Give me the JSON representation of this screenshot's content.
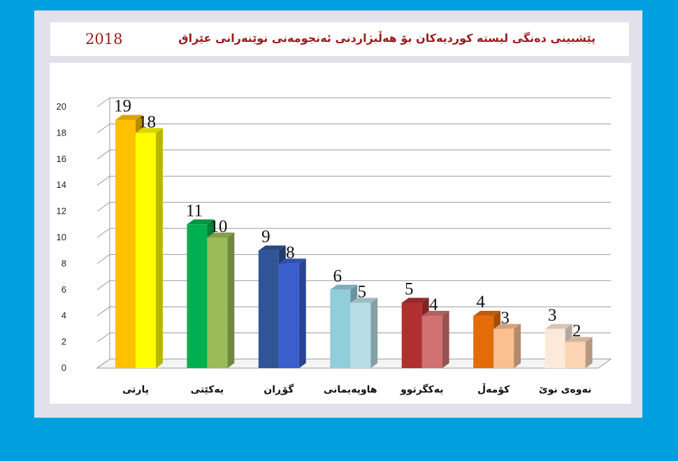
{
  "title": {
    "text": "پێشبینی دەنگی لیستە کوردیەکان بۆ هەڵبژاردنی ئەنجومەنی نوێنەرانی عێراق",
    "year": "2018",
    "color": "#9b1b1b"
  },
  "colors": {
    "background": "#00a0e0",
    "frame": "#e2e0ea",
    "panel": "#ffffff"
  },
  "chart_data": {
    "type": "bar",
    "variant": "3d-grouped",
    "ylim": [
      0,
      20
    ],
    "yticks": [
      0,
      2,
      4,
      6,
      8,
      10,
      12,
      14,
      16,
      18,
      20
    ],
    "grid": true,
    "categories": [
      "پارتی",
      "یەکێتی",
      "گۆڕان",
      "هاوپەیمانی",
      "یەکگرتوو",
      "کۆمەڵ",
      "نەوەی نوێ"
    ],
    "series": [
      {
        "name": "series-1",
        "values": [
          19,
          11,
          9,
          6,
          5,
          4,
          3
        ]
      },
      {
        "name": "series-2",
        "values": [
          18,
          10,
          8,
          5,
          4,
          3,
          2
        ]
      }
    ],
    "bar_colors": [
      [
        "#ffc000",
        "#ffff00"
      ],
      [
        "#00b050",
        "#9bbb59"
      ],
      [
        "#2f5597",
        "#3a5fcd"
      ],
      [
        "#92cddc",
        "#b7dee8"
      ],
      [
        "#b03030",
        "#d07070"
      ],
      [
        "#e36c09",
        "#fac090"
      ],
      [
        "#fde9d9",
        "#fcd5b4"
      ]
    ]
  }
}
